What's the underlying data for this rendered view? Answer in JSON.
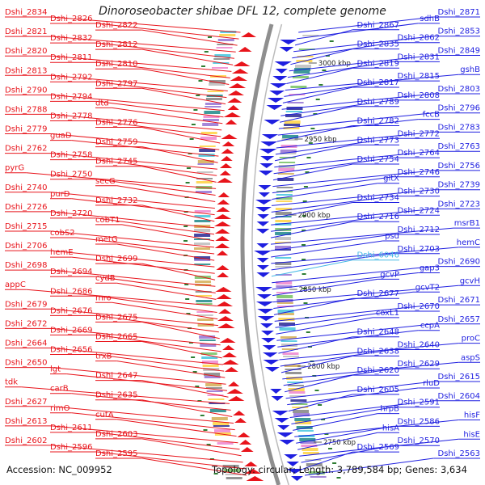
{
  "title": "Dinoroseobacter shibae DFL 12, complete genome",
  "accession": "Accession: NC_009952",
  "summary": "Topology: circular; Length: 3,789,584 bp; Genes: 3,634",
  "colors": {
    "left_genes": "#e8141b",
    "right_genes": "#1f1fe0",
    "highlight_gene": "#46b9e6",
    "backbone": "#8f8f8f",
    "tick": "#2e7d32"
  },
  "scale_marks": [
    "3000 kbp",
    "2950 kbp",
    "2900 kbp",
    "2850 kbp",
    "2800 kbp",
    "2750 kbp"
  ],
  "left_labels": [
    "Dshi_2834",
    "Dshi_2826",
    "Dshi_2822",
    "Dshi_2821",
    "Dshi_2832",
    "Dshi_2812",
    "Dshi_2820",
    "Dshi_2811",
    "Dshi_2810",
    "Dshi_2813",
    "Dshi_2792",
    "Dshi_2797",
    "Dshi_2790",
    "Dshi_2794",
    "dtd",
    "Dshi_2788",
    "Dshi_2778",
    "Dshi_2776",
    "Dshi_2779",
    "guaD",
    "Dshi_2759",
    "Dshi_2762",
    "Dshi_2758",
    "Dshi_2745",
    "pyrG",
    "Dshi_2750",
    "secG",
    "Dshi_2740",
    "purD",
    "Dshi_2732",
    "Dshi_2726",
    "Dshi_2720",
    "cobT1",
    "Dshi_2715",
    "cobS2",
    "metG",
    "Dshi_2706",
    "hemE",
    "Dshi_2699",
    "Dshi_2698",
    "Dshi_2694",
    "cydB",
    "appC",
    "Dshi_2686",
    "mro",
    "Dshi_2679",
    "Dshi_2676",
    "Dshi_2675",
    "Dshi_2672",
    "Dshi_2669",
    "Dshi_2665",
    "Dshi_2664",
    "Dshi_2656",
    "trxB",
    "Dshi_2650",
    "lgt",
    "Dshi_2647",
    "tdk",
    "carB",
    "Dshi_2635",
    "Dshi_2627",
    "rimO",
    "cutA",
    "Dshi_2613",
    "Dshi_2611",
    "Dshi_2603",
    "Dshi_2602",
    "Dshi_2596",
    "Dshi_2595"
  ],
  "right_labels": [
    "Dshi_2871",
    "sdhB",
    "Dshi_2867",
    "Dshi_2853",
    "Dshi_2862",
    "Dshi_2835",
    "Dshi_2849",
    "Dshi_2831",
    "Dshi_2819",
    "gshB",
    "Dshi_2815",
    "Dshi_2817",
    "Dshi_2803",
    "Dshi_2808",
    "Dshi_2789",
    "Dshi_2796",
    "fccB",
    "Dshi_2782",
    "Dshi_2783",
    "Dshi_2772",
    "Dshi_2773",
    "Dshi_2763",
    "Dshi_2764",
    "Dshi_2754",
    "Dshi_2756",
    "Dshi_2746",
    "gltX",
    "Dshi_2739",
    "Dshi_2730",
    "Dshi_2734",
    "Dshi_2723",
    "Dshi_2724",
    "Dshi_2716",
    "msrB1",
    "Dshi_2712",
    "psd",
    "hemC",
    "Dshi_2703",
    "Dshi_6046",
    "Dshi_2690",
    "gap3",
    "gcvP",
    "gcvH",
    "gcvT2",
    "Dshi_2677",
    "Dshi_2671",
    "Dshi_2670",
    "coxL1",
    "Dshi_2657",
    "ccpA",
    "Dshi_2648",
    "proC",
    "Dshi_2640",
    "Dshi_2638",
    "aspS",
    "Dshi_2629",
    "Dshi_2620",
    "Dshi_2615",
    "rluD",
    "Dshi_2605",
    "Dshi_2604",
    "Dshi_2591",
    "hrpB",
    "hisF",
    "Dshi_2586",
    "hisA",
    "hisE",
    "Dshi_2570",
    "Dshi_2569",
    "Dshi_2563"
  ]
}
